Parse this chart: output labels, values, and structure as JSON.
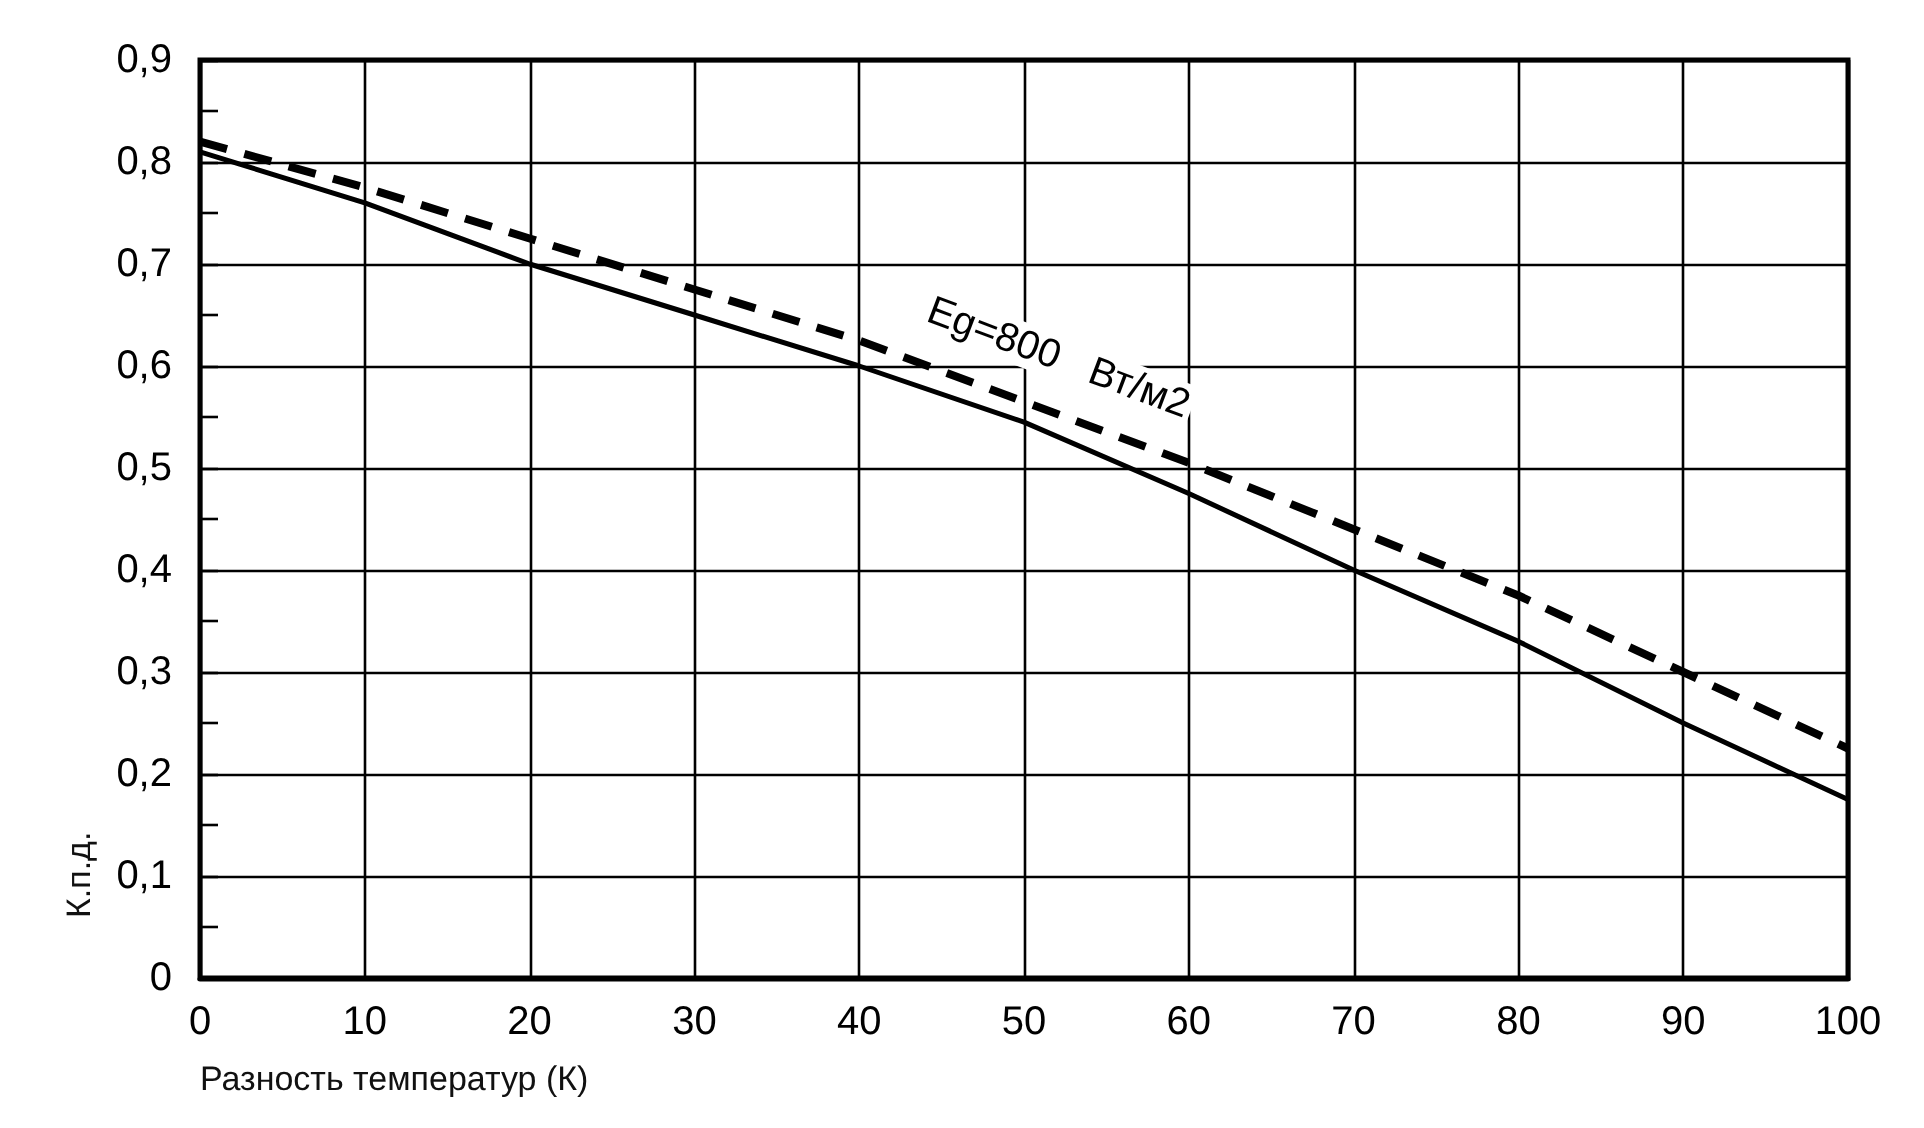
{
  "chart_data": {
    "type": "line",
    "xlabel": "Разность температур (К)",
    "ylabel": "К.п.д.",
    "x": [
      0,
      10,
      20,
      30,
      40,
      50,
      60,
      70,
      80,
      90,
      100
    ],
    "series": [
      {
        "color": "#000000",
        "line_style": "solid",
        "values": [
          0.81,
          0.76,
          0.7,
          0.65,
          0.6,
          0.545,
          0.475,
          0.4,
          0.33,
          0.25,
          0.175
        ]
      },
      {
        "color": "#000000",
        "line_style": "dashed",
        "values": [
          0.82,
          0.775,
          0.725,
          0.675,
          0.625,
          0.565,
          0.505,
          0.44,
          0.375,
          0.3,
          0.225
        ]
      }
    ],
    "xlim": [
      0,
      100
    ],
    "xticks": [
      0,
      10,
      20,
      30,
      40,
      50,
      60,
      70,
      80,
      90,
      100
    ],
    "ylim": [
      0,
      0.9
    ],
    "yticks": [
      {
        "value": 0,
        "label": "0"
      },
      {
        "value": 0.05,
        "label": null
      },
      {
        "value": 0.1,
        "label": "0,1"
      },
      {
        "value": 0.15,
        "label": null
      },
      {
        "value": 0.2,
        "label": "0,2"
      },
      {
        "value": 0.25,
        "label": null
      },
      {
        "value": 0.3,
        "label": "0,3"
      },
      {
        "value": 0.35,
        "label": null
      },
      {
        "value": 0.4,
        "label": "0,4"
      },
      {
        "value": 0.45,
        "label": null
      },
      {
        "value": 0.5,
        "label": "0,5"
      },
      {
        "value": 0.55,
        "label": null
      },
      {
        "value": 0.6,
        "label": "0,6"
      },
      {
        "value": 0.65,
        "label": null
      },
      {
        "value": 0.7,
        "label": "0,7"
      },
      {
        "value": 0.75,
        "label": null
      },
      {
        "value": 0.8,
        "label": "0,8"
      },
      {
        "value": 0.85,
        "label": null
      },
      {
        "value": 0.9,
        "label": "0,9"
      }
    ],
    "annotations": [
      "Eg=800   Вт/м2"
    ],
    "grid": true,
    "marker": "none"
  }
}
